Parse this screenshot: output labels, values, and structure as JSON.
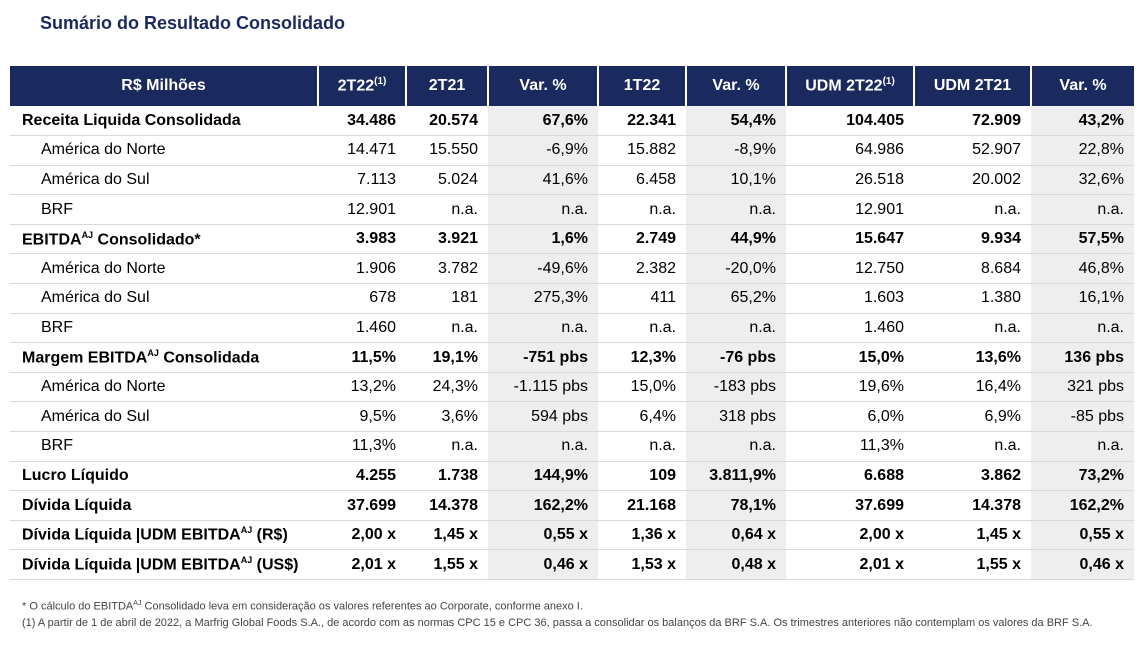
{
  "title": "Sumário do Resultado Consolidado",
  "headers": [
    {
      "text": "R$ Milhões",
      "sup": ""
    },
    {
      "text": "2T22",
      "sup": "(1)"
    },
    {
      "text": "2T21",
      "sup": ""
    },
    {
      "text": "Var. %",
      "sup": ""
    },
    {
      "text": "1T22",
      "sup": ""
    },
    {
      "text": "Var. %",
      "sup": ""
    },
    {
      "text": "UDM 2T22",
      "sup": "(1)"
    },
    {
      "text": "UDM 2T21",
      "sup": ""
    },
    {
      "text": "Var. %",
      "sup": ""
    }
  ],
  "rows": [
    {
      "label": "Receita Liquida Consolidada",
      "sup": "",
      "suffix": "",
      "sub": false,
      "bold": true,
      "values": [
        "34.486",
        "20.574",
        "67,6%",
        "22.341",
        "54,4%",
        "104.405",
        "72.909",
        "43,2%"
      ]
    },
    {
      "label": "América do Norte",
      "sup": "",
      "suffix": "",
      "sub": true,
      "bold": false,
      "values": [
        "14.471",
        "15.550",
        "-6,9%",
        "15.882",
        "-8,9%",
        "64.986",
        "52.907",
        "22,8%"
      ]
    },
    {
      "label": "América do Sul",
      "sup": "",
      "suffix": "",
      "sub": true,
      "bold": false,
      "values": [
        "7.113",
        "5.024",
        "41,6%",
        "6.458",
        "10,1%",
        "26.518",
        "20.002",
        "32,6%"
      ]
    },
    {
      "label": "BRF",
      "sup": "",
      "suffix": "",
      "sub": true,
      "bold": false,
      "values": [
        "12.901",
        "n.a.",
        "n.a.",
        "n.a.",
        "n.a.",
        "12.901",
        "n.a.",
        "n.a."
      ]
    },
    {
      "label": "EBITDA",
      "sup": "AJ",
      "suffix": " Consolidado*",
      "sub": false,
      "bold": true,
      "values": [
        "3.983",
        "3.921",
        "1,6%",
        "2.749",
        "44,9%",
        "15.647",
        "9.934",
        "57,5%"
      ]
    },
    {
      "label": "América do Norte",
      "sup": "",
      "suffix": "",
      "sub": true,
      "bold": false,
      "values": [
        "1.906",
        "3.782",
        "-49,6%",
        "2.382",
        "-20,0%",
        "12.750",
        "8.684",
        "46,8%"
      ]
    },
    {
      "label": "América do Sul",
      "sup": "",
      "suffix": "",
      "sub": true,
      "bold": false,
      "values": [
        "678",
        "181",
        "275,3%",
        "411",
        "65,2%",
        "1.603",
        "1.380",
        "16,1%"
      ]
    },
    {
      "label": "BRF",
      "sup": "",
      "suffix": "",
      "sub": true,
      "bold": false,
      "values": [
        "1.460",
        "n.a.",
        "n.a.",
        "n.a.",
        "n.a.",
        "1.460",
        "n.a.",
        "n.a."
      ]
    },
    {
      "label": "Margem EBITDA",
      "sup": "AJ",
      "suffix": " Consolidada",
      "sub": false,
      "bold": true,
      "values": [
        "11,5%",
        "19,1%",
        "-751 pbs",
        "12,3%",
        "-76 pbs",
        "15,0%",
        "13,6%",
        "136 pbs"
      ]
    },
    {
      "label": "América do Norte",
      "sup": "",
      "suffix": "",
      "sub": true,
      "bold": false,
      "values": [
        "13,2%",
        "24,3%",
        "-1.115 pbs",
        "15,0%",
        "-183 pbs",
        "19,6%",
        "16,4%",
        "321 pbs"
      ]
    },
    {
      "label": "América do Sul",
      "sup": "",
      "suffix": "",
      "sub": true,
      "bold": false,
      "values": [
        "9,5%",
        "3,6%",
        "594 pbs",
        "6,4%",
        "318 pbs",
        "6,0%",
        "6,9%",
        "-85 pbs"
      ]
    },
    {
      "label": "BRF",
      "sup": "",
      "suffix": "",
      "sub": true,
      "bold": false,
      "values": [
        "11,3%",
        "n.a.",
        "n.a.",
        "n.a.",
        "n.a.",
        "11,3%",
        "n.a.",
        "n.a."
      ]
    },
    {
      "label": "Lucro Líquido",
      "sup": "",
      "suffix": "",
      "sub": false,
      "bold": true,
      "values": [
        "4.255",
        "1.738",
        "144,9%",
        "109",
        "3.811,9%",
        "6.688",
        "3.862",
        "73,2%"
      ]
    },
    {
      "label": "Dívida Líquida",
      "sup": "",
      "suffix": "",
      "sub": false,
      "bold": true,
      "values": [
        "37.699",
        "14.378",
        "162,2%",
        "21.168",
        "78,1%",
        "37.699",
        "14.378",
        "162,2%"
      ]
    },
    {
      "label": "Dívida Líquida |UDM EBITDA",
      "sup": "AJ",
      "suffix": " (R$)",
      "sub": false,
      "bold": true,
      "values": [
        "2,00 x",
        "1,45 x",
        "0,55 x",
        "1,36 x",
        "0,64 x",
        "2,00 x",
        "1,45 x",
        "0,55 x"
      ]
    },
    {
      "label": "Dívida Líquida |UDM EBITDA",
      "sup": "AJ",
      "suffix": " (US$)",
      "sub": false,
      "bold": true,
      "values": [
        "2,01 x",
        "1,55 x",
        "0,46 x",
        "1,53 x",
        "0,48 x",
        "2,01 x",
        "1,55 x",
        "0,46 x"
      ]
    }
  ],
  "notes": [
    {
      "pre": "* O cálculo do EBITDA",
      "sup": "AJ",
      "post": " Consolidado leva em consideração os valores referentes ao Corporate, conforme anexo I."
    },
    {
      "pre": "(1)  A partir de 1 de abril de 2022, a Marfrig Global Foods S.A., de acordo com as normas CPC 15 e CPC 36, passa a consolidar os balanços da BRF S.A. Os trimestres anteriores não contemplam os valores da BRF S.A.",
      "sup": "",
      "post": ""
    }
  ]
}
